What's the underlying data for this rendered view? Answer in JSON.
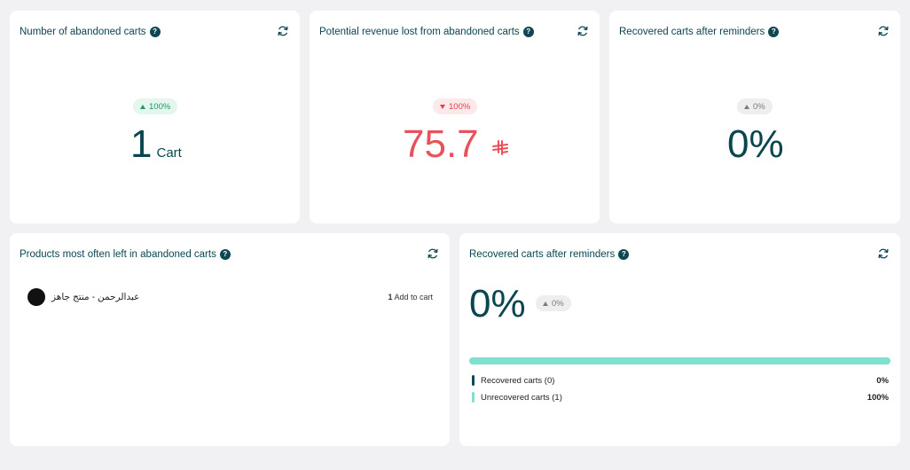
{
  "cards": {
    "abandoned_count": {
      "title": "Number of abandoned carts",
      "change": "100%",
      "value": "1",
      "unit": "Cart"
    },
    "revenue_lost": {
      "title": "Potential revenue lost from abandoned carts",
      "change": "100%",
      "value": "75.7",
      "currency_symbol": "⃁"
    },
    "recovered_top": {
      "title": "Recovered carts after reminders",
      "change": "0%",
      "value": "0%"
    },
    "products": {
      "title": "Products most often left in abandoned carts",
      "items": [
        {
          "name": "عبدالرحمن - منتج جاهز",
          "count": "1",
          "action_label": "Add to cart"
        }
      ]
    },
    "recovered_detail": {
      "title": "Recovered carts after reminders",
      "value": "0%",
      "change": "0%",
      "progress_recovered": 0,
      "legend": [
        {
          "label": "Recovered carts (0)",
          "value": "0%",
          "color": "#0b4a55"
        },
        {
          "label": "Unrecovered carts (1)",
          "value": "100%",
          "color": "#7ee0cd"
        }
      ]
    }
  },
  "icons": {
    "help": "?",
    "refresh": "refresh-icon"
  }
}
